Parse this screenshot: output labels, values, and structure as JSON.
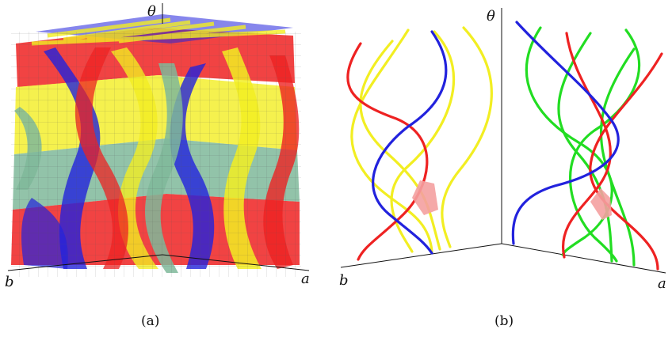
{
  "panel_a": {
    "caption": "(a)",
    "axis_labels": {
      "theta": "θ",
      "b": "b",
      "a": "a"
    }
  },
  "panel_b": {
    "caption": "(b)",
    "axis_labels": {
      "theta": "θ",
      "b": "b",
      "a": "a"
    }
  },
  "colors": {
    "red": "#ee2222",
    "yellow": "#f2ee22",
    "blue": "#2222dd",
    "green": "#22dd22",
    "sea_green": "#7fb89a",
    "highlight": "#f4a0a0",
    "axis": "#111111"
  }
}
